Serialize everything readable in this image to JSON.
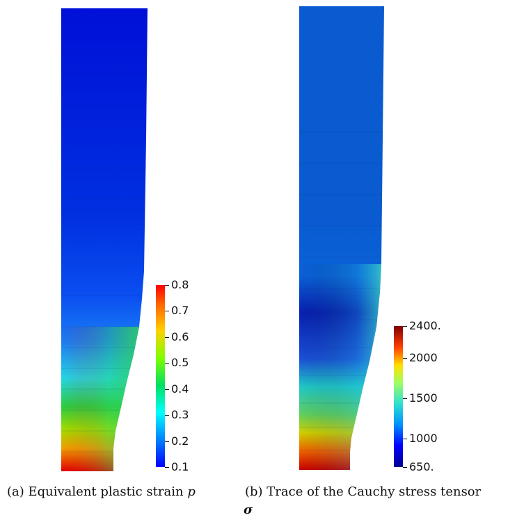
{
  "panels": [
    {
      "id": "a",
      "caption_prefix": "(a) Equivalent plastic strain",
      "caption_symbol": "p",
      "colorbar": {
        "min": 0.1,
        "max": 0.8,
        "ticks": [
          "0.8",
          "0.7",
          "0.6",
          "0.5",
          "0.4",
          "0.3",
          "0.2",
          "0.1"
        ],
        "colormap": "rainbow"
      }
    },
    {
      "id": "b",
      "caption_prefix": "(b) Trace of the Cauchy stress tensor",
      "caption_symbol": "σ",
      "colorbar": {
        "min": 650,
        "max": 2400,
        "ticks": [
          "2400.",
          "2000",
          "1500",
          "1000",
          "650."
        ],
        "colormap": "jet"
      }
    }
  ]
}
